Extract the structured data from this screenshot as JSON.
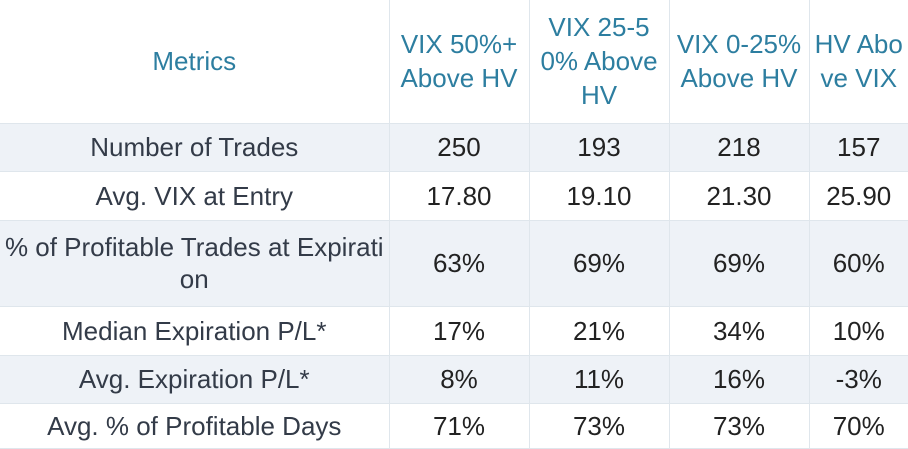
{
  "table": {
    "headers": [
      "Metrics",
      "VIX 50%+ Above HV",
      "VIX 25-50% Above HV",
      "VIX 0-25% Above HV",
      "HV Above VIX"
    ],
    "rows": [
      {
        "metric": "Number of Trades",
        "values": [
          "250",
          "193",
          "218",
          "157"
        ]
      },
      {
        "metric": "Avg. VIX at Entry",
        "values": [
          "17.80",
          "19.10",
          "21.30",
          "25.90"
        ]
      },
      {
        "metric": "% of Profitable Trades at Expiration",
        "values": [
          "63%",
          "69%",
          "69%",
          "60%"
        ]
      },
      {
        "metric": "Median Expiration P/L*",
        "values": [
          "17%",
          "21%",
          "34%",
          "10%"
        ]
      },
      {
        "metric": "Avg. Expiration P/L*",
        "values": [
          "8%",
          "11%",
          "16%",
          "-3%"
        ]
      },
      {
        "metric": "Avg. % of Profitable Days",
        "values": [
          "71%",
          "73%",
          "73%",
          "70%"
        ]
      }
    ]
  },
  "colors": {
    "header_text": "#2d7ea0",
    "stripe": "#eef2f7",
    "grid": "#dfe6ec"
  }
}
